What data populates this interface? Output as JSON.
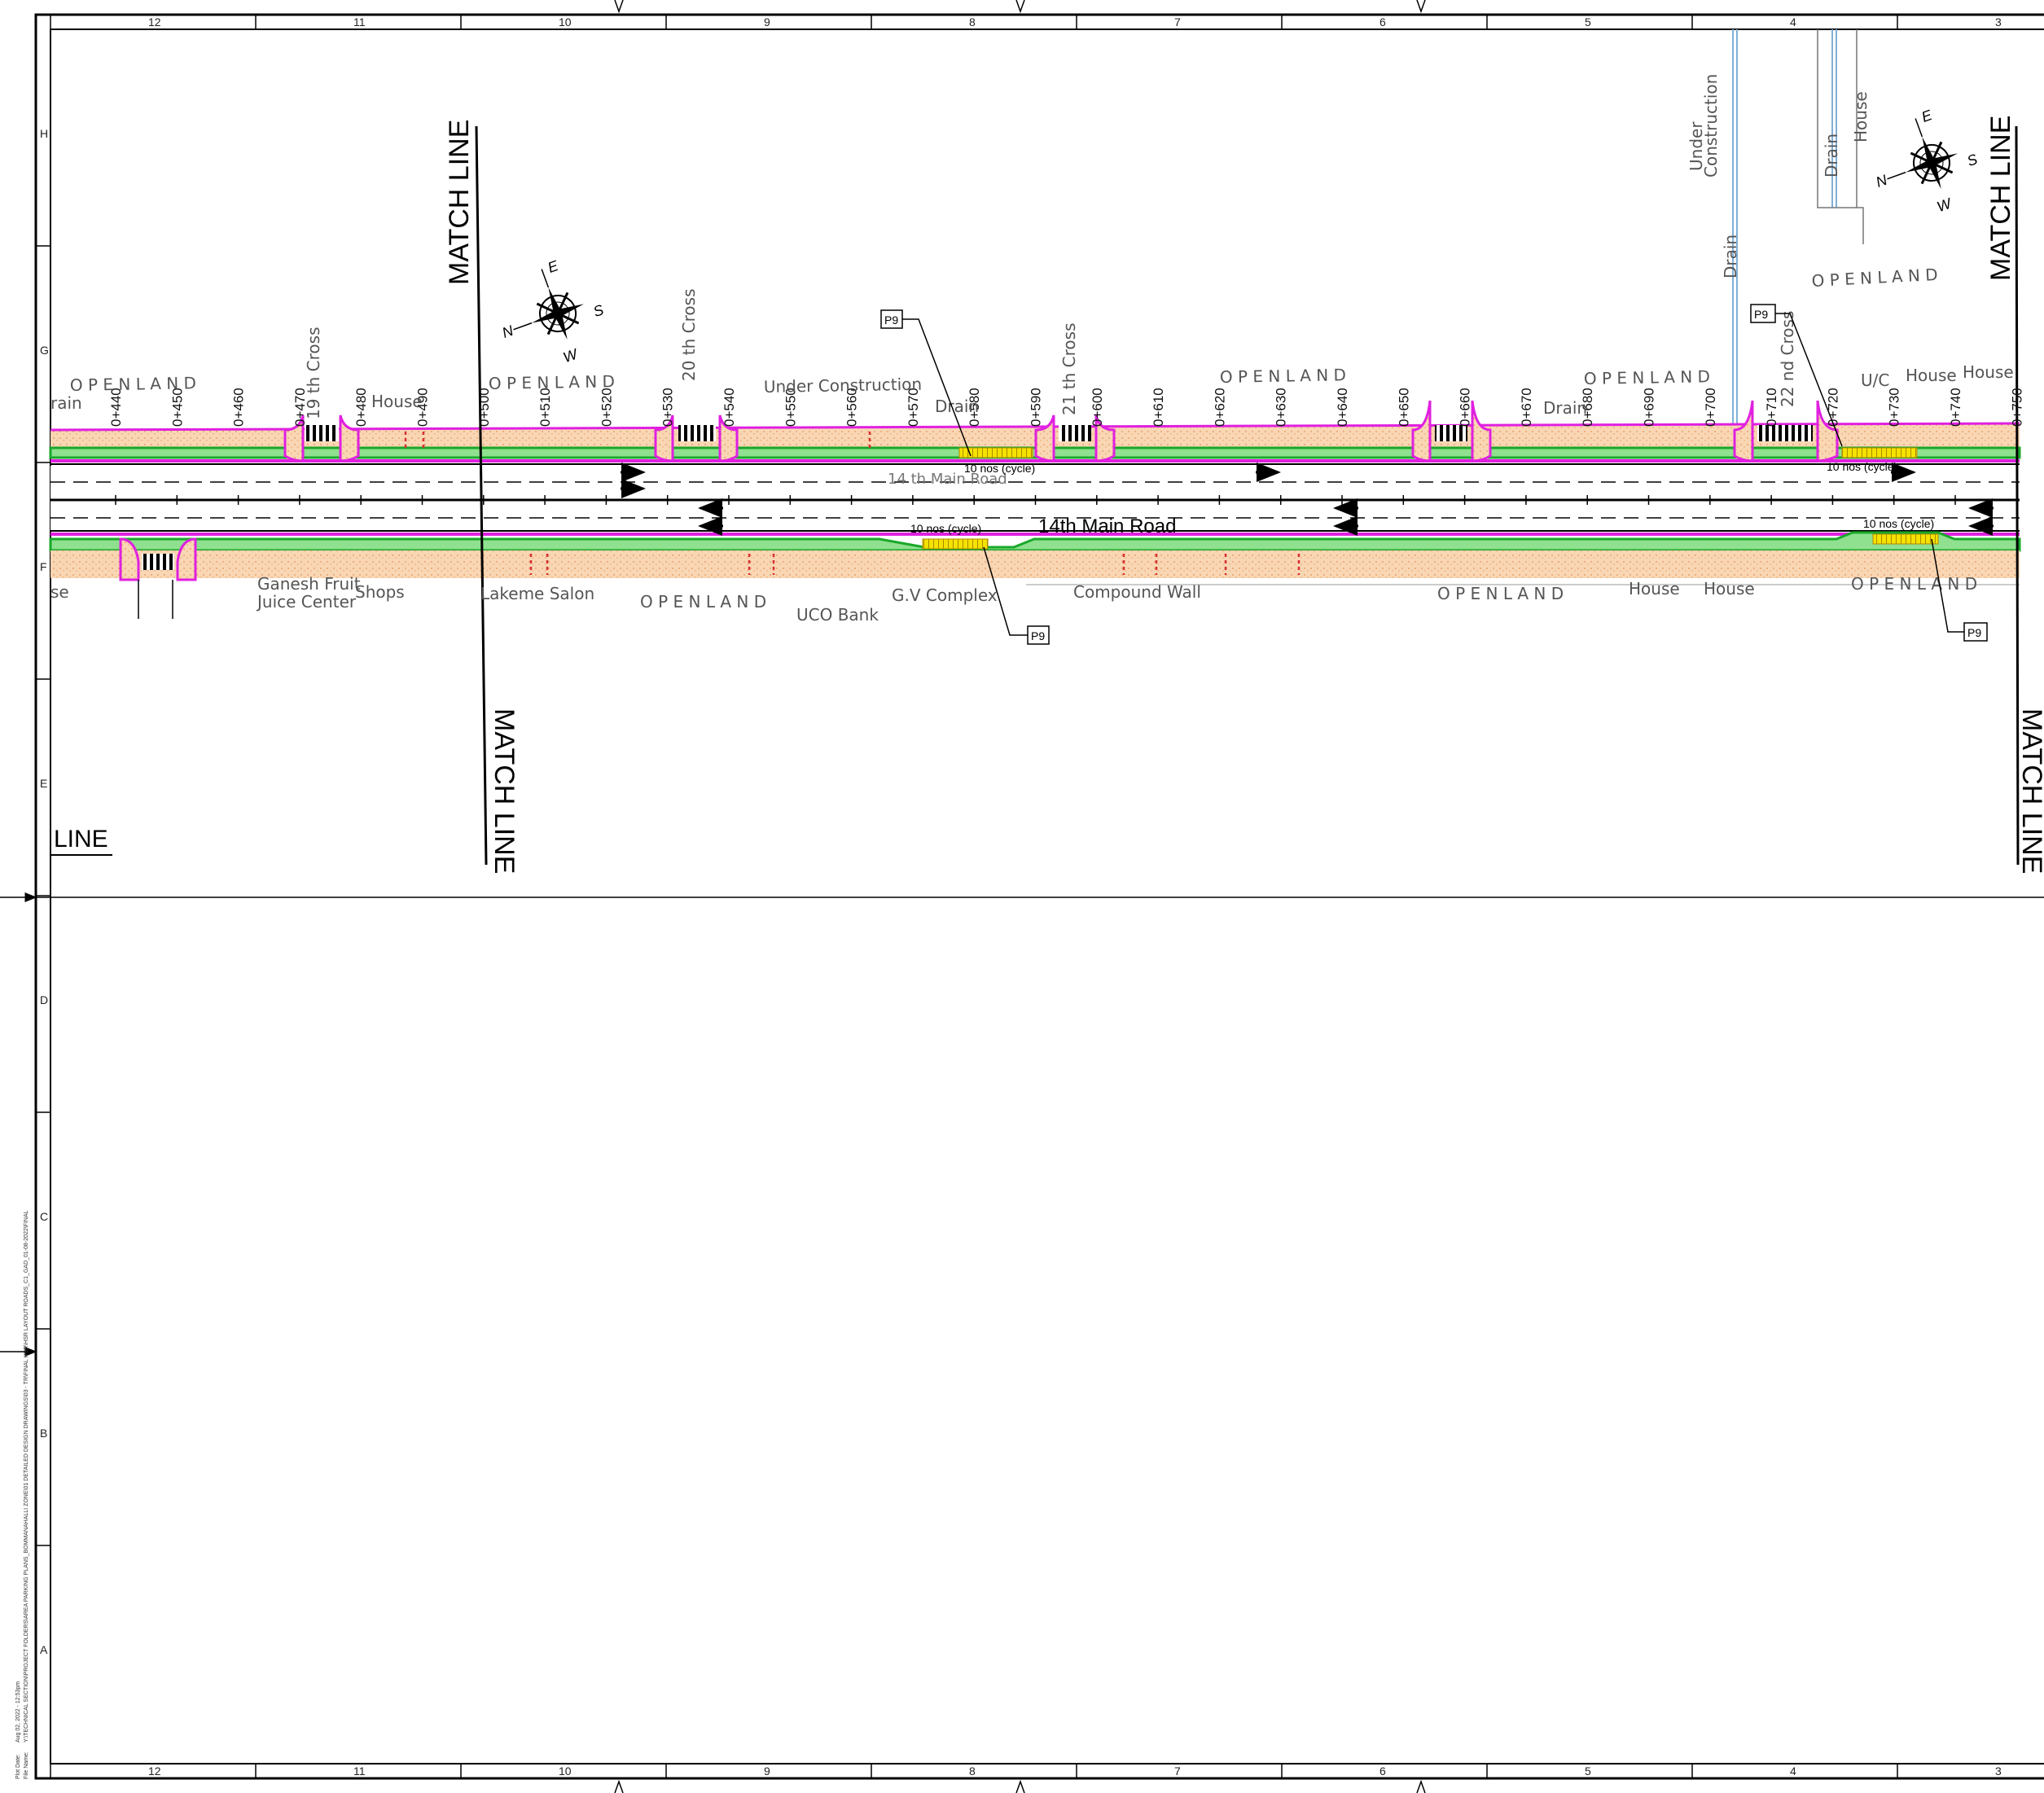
{
  "grid": {
    "columns": [
      "12",
      "11",
      "10",
      "9",
      "8",
      "7",
      "6",
      "5",
      "4",
      "3"
    ],
    "rows": [
      "H",
      "G",
      "F",
      "E",
      "D",
      "C",
      "B",
      "A"
    ]
  },
  "labels": {
    "match_line": "MATCH LINE",
    "line": "LINE",
    "road_name": "14th Main Road",
    "road_name_upper": "14 th Main Road",
    "open_land": "O P E N    L A N D",
    "cross_19": "19 th Cross",
    "cross_20": "20 th Cross",
    "cross_21": "21 th Cross",
    "cross_22": "22 nd Cross",
    "under_construction": "Under Construction",
    "under": "Under",
    "construction": "Construction",
    "drain": "Drain",
    "rain": "rain",
    "house": "House",
    "uc_house": "U/C",
    "se": "se",
    "ganesh_1": "Ganesh Fruit",
    "ganesh_2": "Juice Center",
    "shops": "Shops",
    "lakeme": "Lakeme Salon",
    "uco_bank": "UCO Bank",
    "gv_complex": "G.V Complex",
    "compound_wall": "Compound Wall",
    "cycle_stand": "10 nos (cycle)",
    "p9": "P9",
    "compass": {
      "n": "N",
      "e": "E",
      "s": "S",
      "w": "W"
    }
  },
  "chainages": [
    "0+440",
    "0+450",
    "0+460",
    "0+470",
    "0+480",
    "0+490",
    "0+500",
    "0+510",
    "0+520",
    "0+530",
    "0+540",
    "0+550",
    "0+560",
    "0+570",
    "0+580",
    "0+590",
    "0+600",
    "0+610",
    "0+620",
    "0+630",
    "0+640",
    "0+650",
    "0+660",
    "0+670",
    "0+680",
    "0+690",
    "0+700",
    "0+710",
    "0+720",
    "0+730",
    "0+740",
    "0+750"
  ],
  "plot_info": {
    "date": "Aug 02, 2022 - 12:53pm",
    "path": "Y:\\TECHNICAL SECTION\\PROJECT FOLDERS\\AREA PARKING PLANS_BOMMANAHALLI ZONE\\01 DETAILED DESIGN DRAWINGS\\03 - TR\\FINAL HSR\\HSR LAYOUT ROADS_C1_GAD_01-08-2022\\FINAL",
    "plot_date_label": "Plot Date:",
    "file_name_label": "File Name:"
  },
  "colors": {
    "footpath": "#f6c9a0",
    "magenta": "#e020e0",
    "green": "#1aa82a",
    "light_green": "#8fe08f",
    "parking_yellow": "#f4e200",
    "curb_red": "#d63030",
    "drain_blue": "#7fb0d8"
  }
}
